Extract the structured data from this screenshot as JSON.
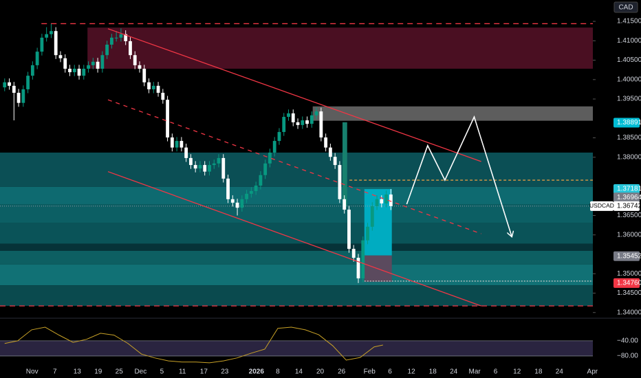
{
  "chart_data": {
    "type": "candlestick",
    "currency": "CAD",
    "symbol": "USDCAD",
    "up_color": "#089981",
    "down_color": "#ffffff",
    "x": [
      1,
      2,
      3,
      4,
      5,
      6,
      7,
      8,
      9,
      10,
      11,
      12,
      13,
      14,
      15,
      16,
      17,
      18,
      19,
      20,
      21,
      22,
      23,
      24,
      25,
      26,
      27,
      28,
      29,
      30,
      31,
      32,
      33,
      34,
      35,
      36,
      37,
      38,
      39,
      40,
      41,
      42,
      43,
      44,
      45,
      46,
      47,
      48,
      49,
      50,
      51,
      52,
      53,
      54,
      55,
      56,
      57,
      58,
      59,
      60,
      61,
      62,
      63,
      64,
      65,
      66,
      67,
      68,
      69,
      70,
      71,
      72,
      73,
      74,
      75,
      76,
      77,
      78,
      79,
      80,
      81,
      82,
      83,
      84
    ],
    "open": [
      1.398,
      1.3993,
      1.3984,
      1.3966,
      1.394,
      1.3975,
      1.401,
      1.4037,
      1.4072,
      1.4108,
      1.4117,
      1.4125,
      1.4063,
      1.4055,
      1.4028,
      1.4019,
      1.4028,
      1.401,
      1.4028,
      1.4037,
      1.4046,
      1.4028,
      1.4063,
      1.409,
      1.4108,
      1.4108,
      1.4117,
      1.4099,
      1.4063,
      1.4037,
      1.4028,
      1.3993,
      1.3975,
      1.3984,
      1.3966,
      1.3948,
      1.3851,
      1.3825,
      1.3842,
      1.3825,
      1.3798,
      1.378,
      1.3771,
      1.378,
      1.3763,
      1.378,
      1.3784,
      1.3798,
      1.3745,
      1.3692,
      1.3683,
      1.367,
      1.3692,
      1.3706,
      1.3713,
      1.3727,
      1.3754,
      1.3784,
      1.3812,
      1.3842,
      1.3865,
      1.3904,
      1.3913,
      1.389,
      1.3883,
      1.3895,
      1.3886,
      1.3908,
      1.3918,
      1.3851,
      1.3825,
      1.3801,
      1.378,
      1.3692,
      1.3665,
      1.3564,
      1.3541,
      1.3488,
      1.3586,
      1.3621,
      1.3674,
      1.3692,
      1.3681,
      1.3704
    ],
    "high": [
      1.4003,
      1.4003,
      1.3994,
      1.3976,
      1.3985,
      1.402,
      1.4047,
      1.4082,
      1.4118,
      1.4135,
      1.4145,
      1.4135,
      1.4073,
      1.4065,
      1.4038,
      1.4038,
      1.4038,
      1.4038,
      1.4047,
      1.4056,
      1.4056,
      1.4073,
      1.41,
      1.4118,
      1.4125,
      1.4132,
      1.4127,
      1.4109,
      1.4073,
      1.4047,
      1.4038,
      1.4003,
      1.3994,
      1.3994,
      1.3976,
      1.3958,
      1.3861,
      1.3852,
      1.3852,
      1.3835,
      1.3808,
      1.379,
      1.379,
      1.379,
      1.379,
      1.3794,
      1.3808,
      1.3808,
      1.3755,
      1.3702,
      1.3693,
      1.3702,
      1.3716,
      1.3723,
      1.3737,
      1.3764,
      1.3794,
      1.3822,
      1.3852,
      1.3875,
      1.3914,
      1.3923,
      1.3923,
      1.39,
      1.3905,
      1.3905,
      1.3918,
      1.3928,
      1.3928,
      1.3861,
      1.3835,
      1.3811,
      1.379,
      1.3702,
      1.3675,
      1.3574,
      1.3551,
      1.3596,
      1.3631,
      1.3684,
      1.3702,
      1.3702,
      1.3714,
      1.3718
    ],
    "low": [
      1.397,
      1.3974,
      1.3895,
      1.393,
      1.393,
      1.3965,
      1.4,
      1.4027,
      1.4062,
      1.4098,
      1.4107,
      1.4053,
      1.4045,
      1.4018,
      1.4009,
      1.4009,
      1.4,
      1.4,
      1.4018,
      1.4027,
      1.4018,
      1.4018,
      1.4053,
      1.408,
      1.4098,
      1.4098,
      1.4089,
      1.4053,
      1.4027,
      1.4018,
      1.3983,
      1.3965,
      1.3965,
      1.3956,
      1.3938,
      1.3841,
      1.3815,
      1.3815,
      1.3815,
      1.3788,
      1.377,
      1.3761,
      1.3761,
      1.3753,
      1.3753,
      1.377,
      1.3774,
      1.3735,
      1.3682,
      1.3673,
      1.365,
      1.366,
      1.3682,
      1.3696,
      1.3703,
      1.3717,
      1.3744,
      1.3774,
      1.3802,
      1.3832,
      1.3855,
      1.3894,
      1.388,
      1.3873,
      1.3873,
      1.3876,
      1.3876,
      1.3898,
      1.3841,
      1.3815,
      1.3791,
      1.377,
      1.3682,
      1.3655,
      1.3554,
      1.3531,
      1.3476,
      1.3478,
      1.3576,
      1.3611,
      1.3664,
      1.3671,
      1.3671,
      1.3664
    ],
    "close": [
      1.3993,
      1.3984,
      1.3966,
      1.394,
      1.3975,
      1.401,
      1.4037,
      1.4072,
      1.4108,
      1.4117,
      1.4125,
      1.4063,
      1.4055,
      1.4028,
      1.4019,
      1.4028,
      1.401,
      1.4028,
      1.4037,
      1.4046,
      1.4028,
      1.4063,
      1.409,
      1.4108,
      1.4108,
      1.4117,
      1.4099,
      1.4063,
      1.4037,
      1.4028,
      1.3993,
      1.3975,
      1.3984,
      1.3966,
      1.3948,
      1.3851,
      1.3825,
      1.3842,
      1.3825,
      1.3798,
      1.378,
      1.3771,
      1.378,
      1.3763,
      1.378,
      1.3784,
      1.3798,
      1.3745,
      1.3692,
      1.3683,
      1.367,
      1.3692,
      1.3706,
      1.3713,
      1.3727,
      1.3754,
      1.3784,
      1.3812,
      1.3842,
      1.3865,
      1.3904,
      1.3913,
      1.389,
      1.3883,
      1.3895,
      1.3886,
      1.3908,
      1.3918,
      1.3851,
      1.3825,
      1.3801,
      1.378,
      1.3692,
      1.3665,
      1.3564,
      1.3541,
      1.3488,
      1.3586,
      1.3621,
      1.3674,
      1.3692,
      1.3681,
      1.3704,
      1.36742
    ],
    "xlim": [
      0,
      127.4
    ],
    "xticks": [
      {
        "value": 6.9,
        "label": "Nov"
      },
      {
        "value": 11.8,
        "label": "7"
      },
      {
        "value": 16.6,
        "label": "13"
      },
      {
        "value": 21.1,
        "label": "19"
      },
      {
        "value": 25.6,
        "label": "25"
      },
      {
        "value": 30.2,
        "label": "Dec"
      },
      {
        "value": 34.8,
        "label": "5"
      },
      {
        "value": 39.2,
        "label": "11"
      },
      {
        "value": 43.8,
        "label": "17"
      },
      {
        "value": 48.3,
        "label": "23"
      },
      {
        "value": 55.1,
        "label": "2026",
        "bold": true
      },
      {
        "value": 59.7,
        "label": "8"
      },
      {
        "value": 64.2,
        "label": "14"
      },
      {
        "value": 68.8,
        "label": "20"
      },
      {
        "value": 73.4,
        "label": "26"
      },
      {
        "value": 79.4,
        "label": "Feb"
      },
      {
        "value": 83.8,
        "label": "6"
      },
      {
        "value": 88.4,
        "label": "12"
      },
      {
        "value": 93,
        "label": "18"
      },
      {
        "value": 97.5,
        "label": "24"
      },
      {
        "value": 102,
        "label": "Mar"
      },
      {
        "value": 106.5,
        "label": "6"
      },
      {
        "value": 111.1,
        "label": "12"
      },
      {
        "value": 115.7,
        "label": "18"
      },
      {
        "value": 120.2,
        "label": "24"
      },
      {
        "value": 127.3,
        "label": "Apr"
      }
    ],
    "ylim": [
      1.3373,
      1.4205
    ],
    "yticks": [
      {
        "value": 1.415,
        "label": "1.41500"
      },
      {
        "value": 1.41,
        "label": "1.41000"
      },
      {
        "value": 1.405,
        "label": "1.40500"
      },
      {
        "value": 1.4,
        "label": "1.40000"
      },
      {
        "value": 1.395,
        "label": "1.39500"
      },
      {
        "value": 1.385,
        "label": "1.38500"
      },
      {
        "value": 1.38,
        "label": "1.38000"
      },
      {
        "value": 1.365,
        "label": "1.36500"
      },
      {
        "value": 1.36,
        "label": "1.36000"
      },
      {
        "value": 1.35,
        "label": "1.35000"
      },
      {
        "value": 1.345,
        "label": "1.34500"
      },
      {
        "value": 1.34,
        "label": "1.34000"
      }
    ],
    "grid": false,
    "last_price": {
      "value": 1.36742,
      "color": "#ffffff"
    },
    "price_labels": [
      {
        "value": 1.38891,
        "color": "#00bcd4"
      },
      {
        "value": 1.37181,
        "color": "#26c6da"
      },
      {
        "value": 1.36964,
        "color": "#787b86"
      },
      {
        "value": 1.35452,
        "color": "#787b86"
      },
      {
        "value": 1.3476,
        "label": "1.34760",
        "color": "#f23645"
      }
    ],
    "zones": [
      {
        "x": [
          0,
          127.4
        ],
        "y": [
          1.3724,
          1.3812
        ],
        "color": "#0b4f55"
      },
      {
        "x": [
          0,
          127.4
        ],
        "y": [
          1.3678,
          1.3724
        ],
        "color": "#0e6a70"
      },
      {
        "x": [
          0,
          127.4
        ],
        "y": [
          1.363,
          1.3678
        ],
        "color": "#0c5f64"
      },
      {
        "x": [
          0,
          127.4
        ],
        "y": [
          1.3577,
          1.363
        ],
        "color": "#0a5358"
      },
      {
        "x": [
          0,
          127.4
        ],
        "y": [
          1.3559,
          1.3577
        ],
        "color": "#063238"
      },
      {
        "x": [
          0,
          127.4
        ],
        "y": [
          1.3524,
          1.3559
        ],
        "color": "#0d5f62"
      },
      {
        "x": [
          0,
          127.4
        ],
        "y": [
          1.347,
          1.3524
        ],
        "color": "#117175"
      },
      {
        "x": [
          0,
          127.4
        ],
        "y": [
          1.3417,
          1.347
        ],
        "color": "#0a4a4e"
      },
      {
        "x": [
          18.8,
          127.4
        ],
        "y": [
          1.4028,
          1.4134
        ],
        "color": "#4a0f22"
      },
      {
        "x": [
          67.2,
          127.4
        ],
        "y": [
          1.3894,
          1.3931
        ],
        "color": "#5d5d5d"
      },
      {
        "x": [
          73.6,
          74.6
        ],
        "y": [
          1.3674,
          1.389
        ],
        "color": "#17806e"
      },
      {
        "x": [
          78.3,
          84.2
        ],
        "y": [
          1.3547,
          1.3718
        ],
        "color": "#00acc1"
      },
      {
        "x": [
          78.3,
          84.2
        ],
        "y": [
          1.3479,
          1.3547
        ],
        "color": "#5b4a5e"
      }
    ],
    "lines": [
      {
        "x": [
          8.9,
          127.4
        ],
        "y": [
          1.4144,
          1.4144
        ],
        "color": "#f23645",
        "dash": "8 6"
      },
      {
        "x": [
          0,
          127.4
        ],
        "y": [
          1.3417,
          1.3417
        ],
        "color": "#f23645",
        "dash": "8 6"
      },
      {
        "x": [
          75.1,
          127.4
        ],
        "y": [
          1.3741,
          1.3741
        ],
        "color": "#f0a040",
        "dash": "4 3"
      },
      {
        "x": [
          78.3,
          127.4
        ],
        "y": [
          1.3481,
          1.3481
        ],
        "color": "#cccccc",
        "dash": "2 2"
      },
      {
        "x": [
          23.2,
          103.4
        ],
        "y": [
          1.4131,
          1.3789
        ],
        "color": "#f23645"
      },
      {
        "x": [
          23.2,
          103.4
        ],
        "y": [
          1.3763,
          1.3417
        ],
        "color": "#f23645"
      },
      {
        "x": [
          23.2,
          103.4
        ],
        "y": [
          1.3948,
          1.3603
        ],
        "color": "#f23645",
        "dash": "6 6"
      },
      {
        "x": [
          87.4,
          91.9,
          95.6,
          101.9,
          110
        ],
        "y": [
          1.3679,
          1.383,
          1.3741,
          1.3904,
          1.3595
        ],
        "color": "#ffffff",
        "arrow": true
      }
    ],
    "oscillator": {
      "color": "#c9a227",
      "band_color": "#2a2440",
      "x": [
        1,
        3.8,
        6.8,
        9.7,
        12.7,
        15.7,
        18.6,
        21.6,
        24.5,
        27.5,
        30.4,
        33.2,
        36.2,
        39.1,
        42.1,
        45,
        48,
        51,
        53.9,
        56.9,
        59.7,
        62.6,
        65.6,
        68.5,
        71.5,
        74.4,
        77.4,
        80.4,
        82.3
      ],
      "values": [
        -47,
        -40,
        -11,
        -4,
        -25,
        -44,
        -36,
        -20,
        -25,
        -47,
        -75,
        -85,
        -93,
        -96,
        -96,
        -98,
        -93,
        -85,
        -73,
        -62,
        -7,
        -4,
        -11,
        -24,
        -53,
        -91,
        -84,
        -56,
        -51
      ],
      "ylim": [
        -111,
        7
      ],
      "yticks": [
        {
          "value": -40,
          "label": "−40.00"
        },
        {
          "value": -80,
          "label": "−80.00"
        }
      ]
    }
  }
}
